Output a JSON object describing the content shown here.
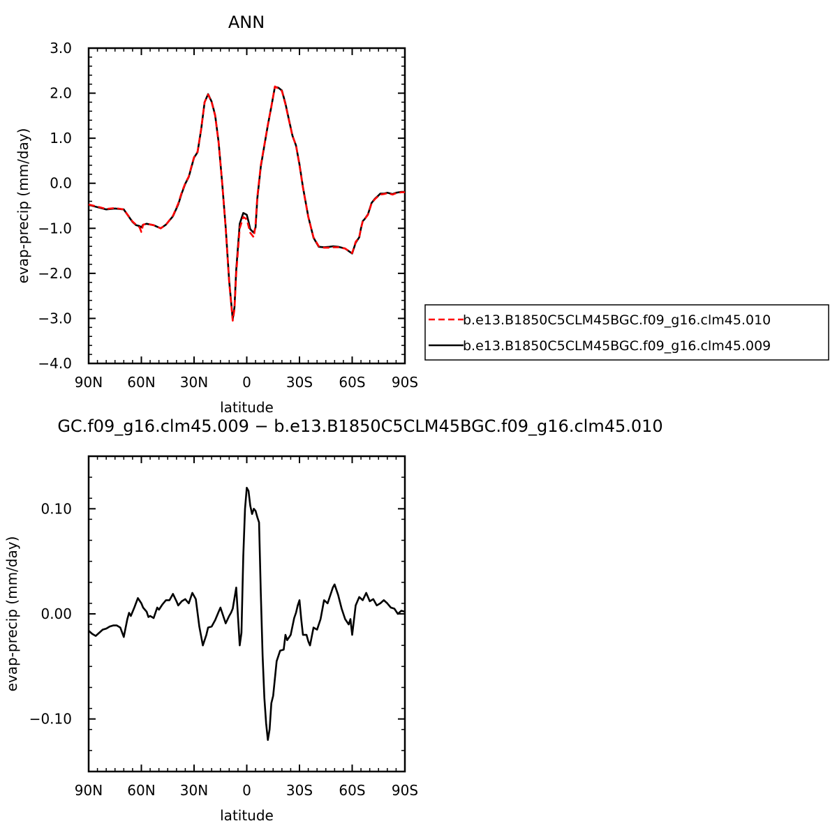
{
  "chart_data": [
    {
      "type": "line",
      "title": "ANN",
      "xlabel": "latitude",
      "ylabel": "evap-precip (mm/day)",
      "xlim": [
        90,
        -90
      ],
      "ylim": [
        -4.0,
        3.0
      ],
      "x_ticks": [
        90,
        60,
        30,
        0,
        -30,
        -60,
        -90
      ],
      "x_tick_labels": [
        "90N",
        "60N",
        "30N",
        "0",
        "30S",
        "60S",
        "90S"
      ],
      "y_ticks": [
        3.0,
        2.0,
        1.0,
        0.0,
        -1.0,
        -2.0,
        -3.0,
        -4.0
      ],
      "y_tick_labels": [
        "3.0",
        "2.0",
        "1.0",
        "0.0",
        "−1.0",
        "−2.0",
        "−3.0",
        "−4.0"
      ],
      "grid": false,
      "legend_position": "right",
      "series": [
        {
          "name": "b.e13.B1850C5CLM45BGC.f09_g16.clm45.010",
          "color": "#ff0000",
          "dash": "dashed",
          "x": [
            90,
            80,
            75,
            70,
            65,
            63,
            61,
            60,
            59,
            57,
            53,
            49,
            46,
            42,
            39,
            37,
            35,
            33,
            31,
            30,
            28,
            26,
            24,
            22,
            20,
            18,
            16,
            14,
            12,
            10,
            8,
            7,
            6,
            4,
            2,
            0,
            -1,
            -2,
            -4,
            -5,
            -6,
            -8,
            -10,
            -12,
            -14,
            -16,
            -18,
            -20,
            -22,
            -24,
            -26,
            -28,
            -30,
            -32,
            -35,
            -38,
            -41,
            -44,
            -47,
            -49,
            -52,
            -56,
            -60,
            -62,
            -64,
            -65,
            -66,
            -67,
            -69,
            -71,
            -73,
            -75,
            -76,
            -78,
            -80,
            -83,
            -85,
            -88,
            -90
          ],
          "y": [
            -0.47,
            -0.57,
            -0.55,
            -0.58,
            -0.85,
            -0.92,
            -0.98,
            -1.08,
            -0.92,
            -0.9,
            -0.93,
            -1.0,
            -0.92,
            -0.72,
            -0.45,
            -0.2,
            0.0,
            0.15,
            0.45,
            0.58,
            0.7,
            1.2,
            1.8,
            1.97,
            1.8,
            1.5,
            0.9,
            0.0,
            -1.0,
            -2.2,
            -3.05,
            -2.8,
            -2.0,
            -1.0,
            -0.75,
            -0.8,
            -0.95,
            -1.1,
            -1.2,
            -0.9,
            -0.3,
            0.4,
            0.85,
            1.3,
            1.7,
            2.15,
            2.1,
            2.05,
            1.75,
            1.4,
            1.05,
            0.85,
            0.4,
            -0.1,
            -0.75,
            -1.2,
            -1.4,
            -1.43,
            -1.43,
            -1.42,
            -1.42,
            -1.45,
            -1.55,
            -1.3,
            -1.2,
            -1.0,
            -0.85,
            -0.8,
            -0.7,
            -0.45,
            -0.35,
            -0.28,
            -0.25,
            -0.24,
            -0.22,
            -0.25,
            -0.22,
            -0.2,
            -0.2
          ]
        },
        {
          "name": "b.e13.B1850C5CLM45BGC.f09_g16.clm45.009",
          "color": "#000000",
          "dash": "solid",
          "x": [
            90,
            80,
            75,
            70,
            65,
            63,
            61,
            60,
            59,
            57,
            53,
            49,
            46,
            42,
            39,
            37,
            35,
            33,
            31,
            30,
            28,
            26,
            24,
            22,
            20,
            18,
            16,
            14,
            12,
            10,
            8,
            7,
            6,
            4,
            2,
            0,
            -1,
            -2,
            -4,
            -5,
            -6,
            -8,
            -10,
            -12,
            -14,
            -16,
            -18,
            -20,
            -22,
            -24,
            -26,
            -28,
            -30,
            -32,
            -35,
            -38,
            -41,
            -44,
            -47,
            -49,
            -52,
            -56,
            -60,
            -62,
            -64,
            -65,
            -66,
            -67,
            -69,
            -71,
            -73,
            -75,
            -76,
            -78,
            -80,
            -83,
            -85,
            -88,
            -90
          ],
          "y": [
            -0.48,
            -0.58,
            -0.56,
            -0.58,
            -0.86,
            -0.93,
            -0.95,
            -0.98,
            -0.92,
            -0.9,
            -0.93,
            -1.0,
            -0.92,
            -0.73,
            -0.47,
            -0.22,
            -0.01,
            0.14,
            0.43,
            0.57,
            0.69,
            1.19,
            1.8,
            1.98,
            1.81,
            1.51,
            0.91,
            0.0,
            -0.98,
            -2.17,
            -3.02,
            -2.75,
            -1.92,
            -0.9,
            -0.66,
            -0.7,
            -0.85,
            -1.02,
            -1.1,
            -0.98,
            -0.34,
            0.37,
            0.84,
            1.29,
            1.7,
            2.14,
            2.12,
            2.06,
            1.77,
            1.41,
            1.06,
            0.84,
            0.42,
            -0.09,
            -0.74,
            -1.21,
            -1.41,
            -1.42,
            -1.41,
            -1.4,
            -1.41,
            -1.45,
            -1.56,
            -1.32,
            -1.2,
            -1.0,
            -0.84,
            -0.8,
            -0.69,
            -0.44,
            -0.34,
            -0.27,
            -0.23,
            -0.23,
            -0.21,
            -0.24,
            -0.21,
            -0.19,
            -0.19
          ]
        }
      ]
    },
    {
      "type": "line",
      "title": "GC.f09_g16.clm45.009 − b.e13.B1850C5CLM45BGC.f09_g16.clm45.010",
      "xlabel": "latitude",
      "ylabel": "evap-precip (mm/day)",
      "xlim": [
        90,
        -90
      ],
      "ylim": [
        -0.15,
        0.15
      ],
      "x_ticks": [
        90,
        60,
        30,
        0,
        -30,
        -60,
        -90
      ],
      "x_tick_labels": [
        "90N",
        "60N",
        "30N",
        "0",
        "30S",
        "60S",
        "90S"
      ],
      "y_ticks": [
        0.1,
        0.0,
        -0.1
      ],
      "y_tick_labels": [
        "0.10",
        "0.00",
        "−0.10"
      ],
      "grid": false,
      "series": [
        {
          "color": "#000000",
          "dash": "solid",
          "x": [
            90,
            88,
            86,
            84,
            82,
            80,
            78,
            76,
            74,
            72,
            70,
            68,
            67,
            66,
            64,
            62,
            60,
            59,
            57,
            56,
            55,
            53,
            51,
            50,
            48,
            46,
            44,
            42,
            40,
            39,
            37,
            35,
            33,
            31,
            29,
            27,
            25,
            23,
            22,
            20,
            18,
            16,
            15,
            14,
            12,
            10,
            9,
            8,
            7,
            6,
            4,
            3,
            2,
            1,
            0,
            -1,
            -2,
            -3,
            -4,
            -5,
            -6,
            -7,
            -8,
            -9,
            -10,
            -11,
            -12,
            -13,
            -14,
            -15,
            -17,
            -19,
            -21,
            -22,
            -23,
            -25,
            -27,
            -28,
            -29,
            -30,
            -31,
            -32,
            -34,
            -35,
            -36,
            -38,
            -40,
            -42,
            -44,
            -46,
            -48,
            -49,
            -50,
            -52,
            -54,
            -56,
            -58,
            -59,
            -60,
            -62,
            -64,
            -66,
            -68,
            -70,
            -72,
            -74,
            -76,
            -78,
            -80,
            -82,
            -84,
            -86,
            -88,
            -90
          ],
          "y": [
            -0.016,
            -0.019,
            -0.021,
            -0.018,
            -0.015,
            -0.014,
            -0.012,
            -0.011,
            -0.011,
            -0.013,
            -0.022,
            -0.005,
            0.001,
            -0.002,
            0.006,
            0.015,
            0.01,
            0.006,
            0.002,
            -0.003,
            -0.002,
            -0.004,
            0.006,
            0.004,
            0.009,
            0.013,
            0.013,
            0.019,
            0.012,
            0.008,
            0.012,
            0.014,
            0.01,
            0.02,
            0.014,
            -0.012,
            -0.03,
            -0.02,
            -0.013,
            -0.012,
            -0.006,
            0.002,
            0.006,
            0.001,
            -0.009,
            -0.002,
            0.001,
            0.005,
            0.015,
            0.025,
            -0.03,
            -0.018,
            0.055,
            0.1,
            0.12,
            0.117,
            0.103,
            0.095,
            0.1,
            0.098,
            0.092,
            0.087,
            0.02,
            -0.04,
            -0.08,
            -0.104,
            -0.12,
            -0.11,
            -0.085,
            -0.078,
            -0.045,
            -0.035,
            -0.034,
            -0.02,
            -0.025,
            -0.02,
            -0.004,
            0.001,
            0.008,
            0.013,
            -0.005,
            -0.02,
            -0.02,
            -0.026,
            -0.03,
            -0.013,
            -0.015,
            -0.005,
            0.013,
            0.01,
            0.02,
            0.025,
            0.028,
            0.018,
            0.005,
            -0.005,
            -0.01,
            -0.005,
            -0.02,
            0.008,
            0.016,
            0.013,
            0.02,
            0.012,
            0.014,
            0.008,
            0.01,
            0.013,
            0.01,
            0.006,
            0.005,
            0.0,
            0.003,
            0.002
          ]
        }
      ]
    }
  ]
}
